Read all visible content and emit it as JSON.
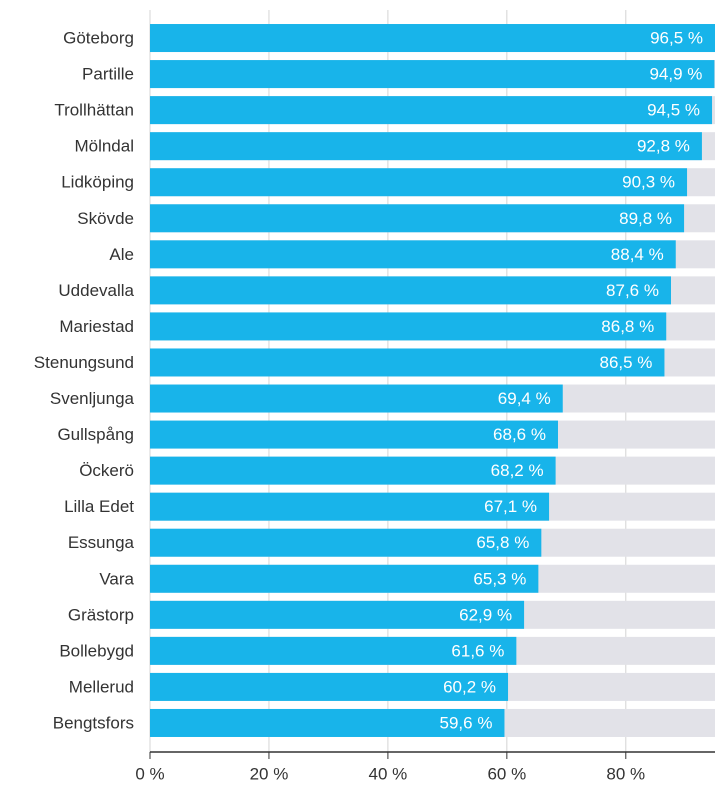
{
  "chart_data": {
    "type": "bar",
    "orientation": "horizontal",
    "categories": [
      "Göteborg",
      "Partille",
      "Trollhättan",
      "Mölndal",
      "Lidköping",
      "Skövde",
      "Ale",
      "Uddevalla",
      "Mariestad",
      "Stenungsund",
      "Svenljunga",
      "Gullspång",
      "Öckerö",
      "Lilla Edet",
      "Essunga",
      "Vara",
      "Grästorp",
      "Bollebygd",
      "Mellerud",
      "Bengtsfors"
    ],
    "values": [
      96.5,
      94.9,
      94.5,
      92.8,
      90.3,
      89.8,
      88.4,
      87.6,
      86.8,
      86.5,
      69.4,
      68.6,
      68.2,
      67.1,
      65.8,
      65.3,
      62.9,
      61.6,
      60.2,
      59.6
    ],
    "value_labels": [
      "96,5 %",
      "94,9 %",
      "94,5 %",
      "92,8 %",
      "90,3 %",
      "89,8 %",
      "88,4 %",
      "87,6 %",
      "86,8 %",
      "86,5 %",
      "69,4 %",
      "68,6 %",
      "68,2 %",
      "67,1 %",
      "65,8 %",
      "65,3 %",
      "62,9 %",
      "61,6 %",
      "60,2 %",
      "59,6 %"
    ],
    "color": "#18b4ea",
    "background_color": "#e2e2e8",
    "xlim": [
      0,
      95
    ],
    "xticks": [
      {
        "value": 0,
        "label": "0 %"
      },
      {
        "value": 20,
        "label": "20 %"
      },
      {
        "value": 40,
        "label": "40 %"
      },
      {
        "value": 60,
        "label": "60 %"
      },
      {
        "value": 80,
        "label": "80 %"
      }
    ],
    "grid": true
  }
}
